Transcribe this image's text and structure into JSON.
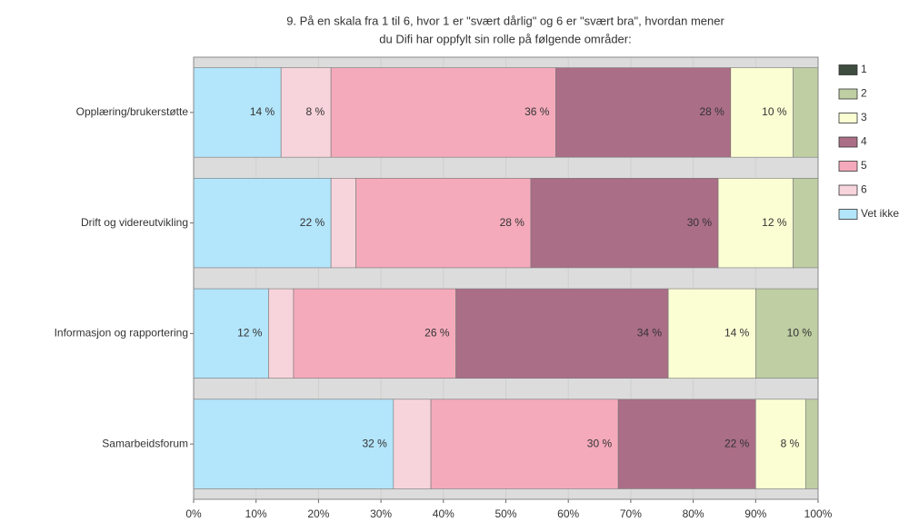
{
  "chart_data": {
    "type": "stacked_barh",
    "title": [
      "9. På en skala fra 1 til 6, hvor 1 er \"svært dårlig\" og 6 er \"svært bra\", hvordan mener",
      "du Difi har oppfylt sin rolle på følgende områder:"
    ],
    "categories": [
      "Opplæring/brukerstøtte",
      "Drift og videreutvikling",
      "Informasjon og rapportering",
      "Samarbeidsforum"
    ],
    "series": [
      {
        "name": "1",
        "color": "#3f4c40",
        "values": [
          0,
          0,
          0,
          0
        ],
        "value_labels": [
          null,
          null,
          null,
          null
        ]
      },
      {
        "name": "2",
        "color": "#bfcea3",
        "values": [
          4,
          4,
          10,
          2
        ],
        "value_labels": [
          null,
          null,
          "10 %",
          null
        ]
      },
      {
        "name": "3",
        "color": "#fbfdd3",
        "values": [
          10,
          12,
          14,
          8
        ],
        "value_labels": [
          "10 %",
          "12 %",
          "14 %",
          "8 %"
        ]
      },
      {
        "name": "4",
        "color": "#ab6e87",
        "values": [
          28,
          30,
          34,
          22
        ],
        "value_labels": [
          "28 %",
          "30 %",
          "34 %",
          "22 %"
        ]
      },
      {
        "name": "5",
        "color": "#f4aabb",
        "values": [
          36,
          28,
          26,
          30
        ],
        "value_labels": [
          "36 %",
          "28 %",
          "26 %",
          "30 %"
        ]
      },
      {
        "name": "6",
        "color": "#f7d4db",
        "values": [
          8,
          4,
          4,
          6
        ],
        "value_labels": [
          "8 %",
          null,
          null,
          null
        ]
      },
      {
        "name": "Vet ikke",
        "color": "#b3e5fb",
        "values": [
          14,
          22,
          12,
          32
        ],
        "value_labels": [
          "14 %",
          "22 %",
          "12 %",
          "32 %"
        ]
      }
    ],
    "xlim": [
      0,
      100
    ],
    "xticks": [
      {
        "value": 0,
        "label": "0%"
      },
      {
        "value": 10,
        "label": "10%"
      },
      {
        "value": 20,
        "label": "20%"
      },
      {
        "value": 30,
        "label": "30%"
      },
      {
        "value": 40,
        "label": "40%"
      },
      {
        "value": 50,
        "label": "50%"
      },
      {
        "value": 60,
        "label": "60%"
      },
      {
        "value": 70,
        "label": "70%"
      },
      {
        "value": 80,
        "label": "80%"
      },
      {
        "value": 90,
        "label": "90%"
      },
      {
        "value": 100,
        "label": "100%"
      }
    ],
    "grid": true,
    "legend": "right"
  }
}
